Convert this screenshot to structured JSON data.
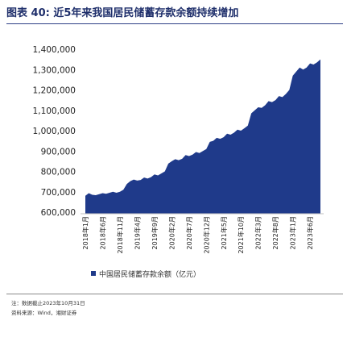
{
  "header": {
    "figure_label": "图表 40:",
    "title_text": "近5年来我国居民储蓄存款余额持续增加"
  },
  "chart_data": {
    "type": "area",
    "title": "近5年来我国居民储蓄存款余额持续增加",
    "series": [
      {
        "name": "中国居民储蓄存款余额（亿元）",
        "color": "#1f3a8a",
        "x": [
          "2018-01",
          "2018-02",
          "2018-03",
          "2018-04",
          "2018-05",
          "2018-06",
          "2018-07",
          "2018-08",
          "2018-09",
          "2018-10",
          "2018-11",
          "2018-12",
          "2019-01",
          "2019-02",
          "2019-03",
          "2019-04",
          "2019-05",
          "2019-06",
          "2019-07",
          "2019-08",
          "2019-09",
          "2019-10",
          "2019-11",
          "2019-12",
          "2020-01",
          "2020-02",
          "2020-03",
          "2020-04",
          "2020-05",
          "2020-06",
          "2020-07",
          "2020-08",
          "2020-09",
          "2020-10",
          "2020-11",
          "2020-12",
          "2021-01",
          "2021-02",
          "2021-03",
          "2021-04",
          "2021-05",
          "2021-06",
          "2021-07",
          "2021-08",
          "2021-09",
          "2021-10",
          "2021-11",
          "2021-12",
          "2022-01",
          "2022-02",
          "2022-03",
          "2022-04",
          "2022-05",
          "2022-06",
          "2022-07",
          "2022-08",
          "2022-09",
          "2022-10",
          "2022-11",
          "2022-12",
          "2023-01",
          "2023-02",
          "2023-03",
          "2023-04",
          "2023-05",
          "2023-06",
          "2023-07",
          "2023-08",
          "2023-09"
        ],
        "values": [
          680000,
          693000,
          685000,
          683000,
          688000,
          693000,
          690000,
          695000,
          700000,
          695000,
          700000,
          710000,
          738000,
          752000,
          760000,
          755000,
          758000,
          770000,
          765000,
          772000,
          785000,
          780000,
          790000,
          800000,
          838000,
          850000,
          860000,
          855000,
          862000,
          880000,
          875000,
          882000,
          895000,
          890000,
          900000,
          910000,
          945000,
          950000,
          965000,
          960000,
          968000,
          985000,
          980000,
          990000,
          1005000,
          1000000,
          1012000,
          1025000,
          1085000,
          1100000,
          1115000,
          1112000,
          1125000,
          1145000,
          1140000,
          1150000,
          1170000,
          1165000,
          1180000,
          1200000,
          1270000,
          1290000,
          1310000,
          1300000,
          1310000,
          1330000,
          1325000,
          1335000,
          1350000
        ]
      }
    ],
    "ylim": [
      600000,
      1400000
    ],
    "yticks": [
      "1,400,000",
      "1,300,000",
      "1,200,000",
      "1,100,000",
      "1,000,000",
      "900,000",
      "800,000",
      "700,000",
      "600,000"
    ],
    "ytick_values": [
      1400000,
      1300000,
      1200000,
      1100000,
      1000000,
      900000,
      800000,
      700000,
      600000
    ],
    "xticks": [
      "2018年1月",
      "2018年6月",
      "2018年11月",
      "2019年4月",
      "2019年9月",
      "2020年2月",
      "2020年7月",
      "2020年12月",
      "2021年5月",
      "2021年10月",
      "2022年3月",
      "2022年8月",
      "2023年1月",
      "2023年6月"
    ],
    "xtick_index": [
      0,
      5,
      10,
      15,
      20,
      25,
      30,
      35,
      40,
      45,
      50,
      55,
      60,
      65
    ],
    "grid": false,
    "legend": {
      "position": "bottom",
      "label": "中国居民储蓄存款余额（亿元）"
    }
  },
  "footnotes": {
    "note": "注：数据截止2023年10月31日",
    "source": "资料来源：Wind，湘财证券"
  }
}
